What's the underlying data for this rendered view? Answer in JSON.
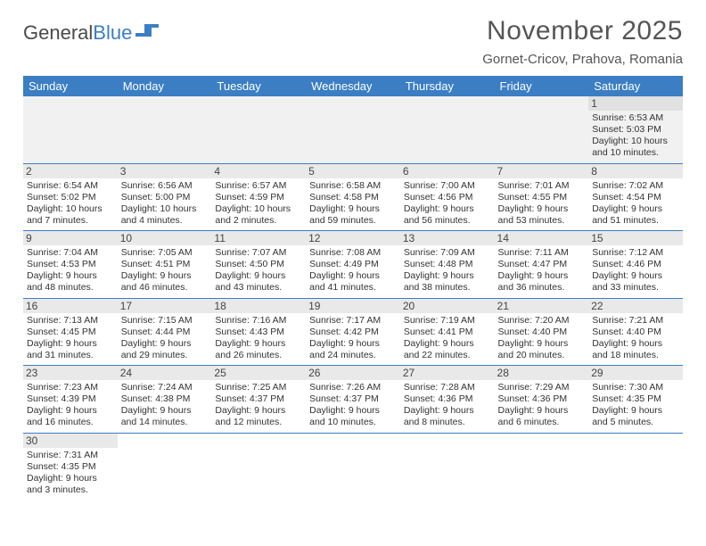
{
  "logo": {
    "text1": "General",
    "text2": "Blue"
  },
  "title": "November 2025",
  "location": "Gornet-Cricov, Prahova, Romania",
  "colors": {
    "header_bg": "#3b7ec4",
    "header_fg": "#ffffff",
    "row_divider": "#3b7ec4",
    "daynum_bg": "#e9e9e9",
    "text": "#333333",
    "title_color": "#555555"
  },
  "weekdays": [
    "Sunday",
    "Monday",
    "Tuesday",
    "Wednesday",
    "Thursday",
    "Friday",
    "Saturday"
  ],
  "grid": [
    [
      {
        "empty": true
      },
      {
        "empty": true
      },
      {
        "empty": true
      },
      {
        "empty": true
      },
      {
        "empty": true
      },
      {
        "empty": true
      },
      {
        "n": "1",
        "sr": "Sunrise: 6:53 AM",
        "ss": "Sunset: 5:03 PM",
        "dl": "Daylight: 10 hours and 10 minutes."
      }
    ],
    [
      {
        "n": "2",
        "sr": "Sunrise: 6:54 AM",
        "ss": "Sunset: 5:02 PM",
        "dl": "Daylight: 10 hours and 7 minutes."
      },
      {
        "n": "3",
        "sr": "Sunrise: 6:56 AM",
        "ss": "Sunset: 5:00 PM",
        "dl": "Daylight: 10 hours and 4 minutes."
      },
      {
        "n": "4",
        "sr": "Sunrise: 6:57 AM",
        "ss": "Sunset: 4:59 PM",
        "dl": "Daylight: 10 hours and 2 minutes."
      },
      {
        "n": "5",
        "sr": "Sunrise: 6:58 AM",
        "ss": "Sunset: 4:58 PM",
        "dl": "Daylight: 9 hours and 59 minutes."
      },
      {
        "n": "6",
        "sr": "Sunrise: 7:00 AM",
        "ss": "Sunset: 4:56 PM",
        "dl": "Daylight: 9 hours and 56 minutes."
      },
      {
        "n": "7",
        "sr": "Sunrise: 7:01 AM",
        "ss": "Sunset: 4:55 PM",
        "dl": "Daylight: 9 hours and 53 minutes."
      },
      {
        "n": "8",
        "sr": "Sunrise: 7:02 AM",
        "ss": "Sunset: 4:54 PM",
        "dl": "Daylight: 9 hours and 51 minutes."
      }
    ],
    [
      {
        "n": "9",
        "sr": "Sunrise: 7:04 AM",
        "ss": "Sunset: 4:53 PM",
        "dl": "Daylight: 9 hours and 48 minutes."
      },
      {
        "n": "10",
        "sr": "Sunrise: 7:05 AM",
        "ss": "Sunset: 4:51 PM",
        "dl": "Daylight: 9 hours and 46 minutes."
      },
      {
        "n": "11",
        "sr": "Sunrise: 7:07 AM",
        "ss": "Sunset: 4:50 PM",
        "dl": "Daylight: 9 hours and 43 minutes."
      },
      {
        "n": "12",
        "sr": "Sunrise: 7:08 AM",
        "ss": "Sunset: 4:49 PM",
        "dl": "Daylight: 9 hours and 41 minutes."
      },
      {
        "n": "13",
        "sr": "Sunrise: 7:09 AM",
        "ss": "Sunset: 4:48 PM",
        "dl": "Daylight: 9 hours and 38 minutes."
      },
      {
        "n": "14",
        "sr": "Sunrise: 7:11 AM",
        "ss": "Sunset: 4:47 PM",
        "dl": "Daylight: 9 hours and 36 minutes."
      },
      {
        "n": "15",
        "sr": "Sunrise: 7:12 AM",
        "ss": "Sunset: 4:46 PM",
        "dl": "Daylight: 9 hours and 33 minutes."
      }
    ],
    [
      {
        "n": "16",
        "sr": "Sunrise: 7:13 AM",
        "ss": "Sunset: 4:45 PM",
        "dl": "Daylight: 9 hours and 31 minutes."
      },
      {
        "n": "17",
        "sr": "Sunrise: 7:15 AM",
        "ss": "Sunset: 4:44 PM",
        "dl": "Daylight: 9 hours and 29 minutes."
      },
      {
        "n": "18",
        "sr": "Sunrise: 7:16 AM",
        "ss": "Sunset: 4:43 PM",
        "dl": "Daylight: 9 hours and 26 minutes."
      },
      {
        "n": "19",
        "sr": "Sunrise: 7:17 AM",
        "ss": "Sunset: 4:42 PM",
        "dl": "Daylight: 9 hours and 24 minutes."
      },
      {
        "n": "20",
        "sr": "Sunrise: 7:19 AM",
        "ss": "Sunset: 4:41 PM",
        "dl": "Daylight: 9 hours and 22 minutes."
      },
      {
        "n": "21",
        "sr": "Sunrise: 7:20 AM",
        "ss": "Sunset: 4:40 PM",
        "dl": "Daylight: 9 hours and 20 minutes."
      },
      {
        "n": "22",
        "sr": "Sunrise: 7:21 AM",
        "ss": "Sunset: 4:40 PM",
        "dl": "Daylight: 9 hours and 18 minutes."
      }
    ],
    [
      {
        "n": "23",
        "sr": "Sunrise: 7:23 AM",
        "ss": "Sunset: 4:39 PM",
        "dl": "Daylight: 9 hours and 16 minutes."
      },
      {
        "n": "24",
        "sr": "Sunrise: 7:24 AM",
        "ss": "Sunset: 4:38 PM",
        "dl": "Daylight: 9 hours and 14 minutes."
      },
      {
        "n": "25",
        "sr": "Sunrise: 7:25 AM",
        "ss": "Sunset: 4:37 PM",
        "dl": "Daylight: 9 hours and 12 minutes."
      },
      {
        "n": "26",
        "sr": "Sunrise: 7:26 AM",
        "ss": "Sunset: 4:37 PM",
        "dl": "Daylight: 9 hours and 10 minutes."
      },
      {
        "n": "27",
        "sr": "Sunrise: 7:28 AM",
        "ss": "Sunset: 4:36 PM",
        "dl": "Daylight: 9 hours and 8 minutes."
      },
      {
        "n": "28",
        "sr": "Sunrise: 7:29 AM",
        "ss": "Sunset: 4:36 PM",
        "dl": "Daylight: 9 hours and 6 minutes."
      },
      {
        "n": "29",
        "sr": "Sunrise: 7:30 AM",
        "ss": "Sunset: 4:35 PM",
        "dl": "Daylight: 9 hours and 5 minutes."
      }
    ],
    [
      {
        "n": "30",
        "sr": "Sunrise: 7:31 AM",
        "ss": "Sunset: 4:35 PM",
        "dl": "Daylight: 9 hours and 3 minutes."
      },
      {
        "trailing": true
      },
      {
        "trailing": true
      },
      {
        "trailing": true
      },
      {
        "trailing": true
      },
      {
        "trailing": true
      },
      {
        "trailing": true
      }
    ]
  ]
}
